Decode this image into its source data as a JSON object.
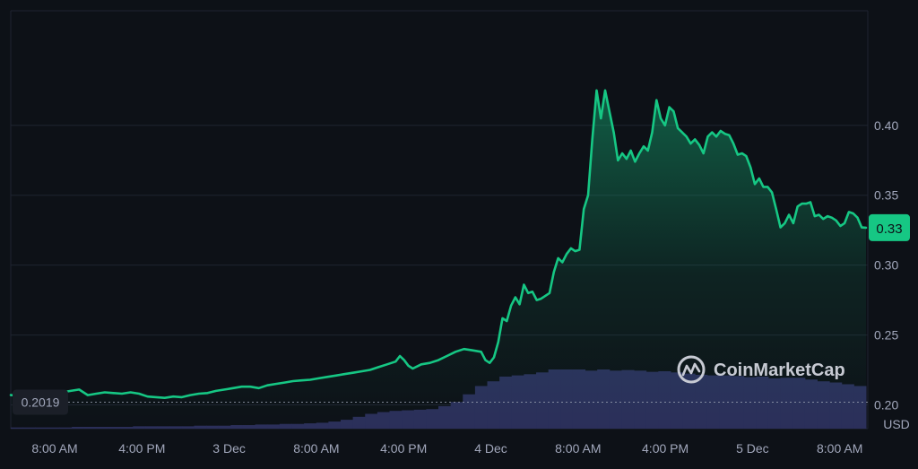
{
  "chart_data": {
    "type": "area",
    "currency_label": "USD",
    "x_ticks": [
      "8:00 AM",
      "4:00 PM",
      "3 Dec",
      "8:00 AM",
      "4:00 PM",
      "4 Dec",
      "8:00 AM",
      "4:00 PM",
      "5 Dec",
      "8:00 AM"
    ],
    "y_ticks": [
      "0.40",
      "0.35",
      "0.30",
      "0.25",
      "0.20"
    ],
    "ylim": [
      0.183,
      0.482
    ],
    "baseline": {
      "label": "0.2019",
      "value": 0.2019
    },
    "current_price": {
      "label": "0.33",
      "value": 0.3268
    },
    "colors": {
      "line": "#16c784",
      "badge": "#16c784",
      "volume": "#2b2f5a",
      "background": "#0d1117"
    },
    "series": [
      {
        "values": [
          [
            0,
            0.207
          ],
          [
            2,
            0.2066
          ],
          [
            4,
            0.207
          ],
          [
            6,
            0.2072
          ],
          [
            8,
            0.2076
          ],
          [
            10,
            0.208
          ],
          [
            12,
            0.209
          ],
          [
            14,
            0.21
          ],
          [
            16,
            0.211
          ],
          [
            17,
            0.209
          ],
          [
            18,
            0.207
          ],
          [
            20,
            0.208
          ],
          [
            22,
            0.209
          ],
          [
            24,
            0.2085
          ],
          [
            26,
            0.208
          ],
          [
            28,
            0.209
          ],
          [
            30,
            0.208
          ],
          [
            32,
            0.206
          ],
          [
            34,
            0.2055
          ],
          [
            36,
            0.205
          ],
          [
            38,
            0.206
          ],
          [
            40,
            0.2055
          ],
          [
            42,
            0.207
          ],
          [
            44,
            0.208
          ],
          [
            46,
            0.2085
          ],
          [
            48,
            0.21
          ],
          [
            50,
            0.211
          ],
          [
            52,
            0.212
          ],
          [
            54,
            0.213
          ],
          [
            56,
            0.213
          ],
          [
            58,
            0.212
          ],
          [
            60,
            0.214
          ],
          [
            62,
            0.215
          ],
          [
            64,
            0.216
          ],
          [
            66,
            0.217
          ],
          [
            68,
            0.2175
          ],
          [
            70,
            0.218
          ],
          [
            72,
            0.219
          ],
          [
            74,
            0.22
          ],
          [
            76,
            0.221
          ],
          [
            78,
            0.222
          ],
          [
            80,
            0.223
          ],
          [
            82,
            0.224
          ],
          [
            84,
            0.225
          ],
          [
            86,
            0.227
          ],
          [
            88,
            0.229
          ],
          [
            90,
            0.231
          ],
          [
            91,
            0.235
          ],
          [
            92,
            0.232
          ],
          [
            93,
            0.228
          ],
          [
            94,
            0.226
          ],
          [
            96,
            0.229
          ],
          [
            98,
            0.23
          ],
          [
            100,
            0.232
          ],
          [
            102,
            0.235
          ],
          [
            104,
            0.238
          ],
          [
            106,
            0.24
          ],
          [
            108,
            0.239
          ],
          [
            110,
            0.238
          ],
          [
            111,
            0.232
          ],
          [
            112,
            0.23
          ],
          [
            113,
            0.234
          ],
          [
            114,
            0.245
          ],
          [
            115,
            0.262
          ],
          [
            116,
            0.26
          ],
          [
            117,
            0.271
          ],
          [
            118,
            0.277
          ],
          [
            119,
            0.272
          ],
          [
            120,
            0.286
          ],
          [
            121,
            0.28
          ],
          [
            122,
            0.281
          ],
          [
            123,
            0.275
          ],
          [
            124,
            0.276
          ],
          [
            125,
            0.278
          ],
          [
            126,
            0.28
          ],
          [
            127,
            0.295
          ],
          [
            128,
            0.305
          ],
          [
            129,
            0.302
          ],
          [
            130,
            0.308
          ],
          [
            131,
            0.312
          ],
          [
            132,
            0.31
          ],
          [
            133,
            0.311
          ],
          [
            134,
            0.34
          ],
          [
            135,
            0.35
          ],
          [
            136,
            0.39
          ],
          [
            137,
            0.425
          ],
          [
            138,
            0.405
          ],
          [
            139,
            0.425
          ],
          [
            140,
            0.41
          ],
          [
            141,
            0.395
          ],
          [
            142,
            0.375
          ],
          [
            143,
            0.38
          ],
          [
            144,
            0.376
          ],
          [
            145,
            0.382
          ],
          [
            146,
            0.374
          ],
          [
            147,
            0.38
          ],
          [
            148,
            0.385
          ],
          [
            149,
            0.382
          ],
          [
            150,
            0.395
          ],
          [
            151,
            0.418
          ],
          [
            152,
            0.405
          ],
          [
            153,
            0.4
          ],
          [
            154,
            0.413
          ],
          [
            155,
            0.41
          ],
          [
            156,
            0.398
          ],
          [
            157,
            0.395
          ],
          [
            158,
            0.392
          ],
          [
            159,
            0.387
          ],
          [
            160,
            0.39
          ],
          [
            161,
            0.386
          ],
          [
            162,
            0.38
          ],
          [
            163,
            0.392
          ],
          [
            164,
            0.395
          ],
          [
            165,
            0.392
          ],
          [
            166,
            0.396
          ],
          [
            167,
            0.394
          ],
          [
            168,
            0.393
          ],
          [
            169,
            0.387
          ],
          [
            170,
            0.379
          ],
          [
            171,
            0.38
          ],
          [
            172,
            0.378
          ],
          [
            173,
            0.37
          ],
          [
            174,
            0.358
          ],
          [
            175,
            0.362
          ],
          [
            176,
            0.356
          ],
          [
            177,
            0.356
          ],
          [
            178,
            0.352
          ],
          [
            179,
            0.34
          ],
          [
            180,
            0.327
          ],
          [
            181,
            0.33
          ],
          [
            182,
            0.336
          ],
          [
            183,
            0.33
          ],
          [
            184,
            0.342
          ],
          [
            185,
            0.344
          ],
          [
            186,
            0.344
          ],
          [
            187,
            0.345
          ],
          [
            188,
            0.335
          ],
          [
            189,
            0.336
          ],
          [
            190,
            0.333
          ],
          [
            191,
            0.335
          ],
          [
            192,
            0.334
          ],
          [
            193,
            0.332
          ],
          [
            194,
            0.328
          ],
          [
            195,
            0.33
          ],
          [
            196,
            0.338
          ],
          [
            197,
            0.337
          ],
          [
            198,
            0.334
          ],
          [
            199,
            0.327
          ],
          [
            200,
            0.3268
          ]
        ]
      }
    ],
    "volume_values": [
      0.02,
      0.02,
      0.02,
      0.02,
      0.02,
      0.03,
      0.03,
      0.03,
      0.03,
      0.03,
      0.04,
      0.04,
      0.04,
      0.04,
      0.04,
      0.05,
      0.05,
      0.05,
      0.06,
      0.06,
      0.07,
      0.07,
      0.08,
      0.08,
      0.09,
      0.1,
      0.12,
      0.15,
      0.2,
      0.25,
      0.28,
      0.3,
      0.31,
      0.32,
      0.33,
      0.38,
      0.45,
      0.58,
      0.72,
      0.8,
      0.88,
      0.9,
      0.92,
      0.95,
      1.0,
      1.0,
      1.0,
      0.98,
      1.0,
      0.98,
      0.99,
      0.98,
      0.96,
      0.97,
      0.95,
      0.93,
      0.91,
      0.9,
      0.9,
      0.89,
      0.87,
      0.88,
      0.85,
      0.86,
      0.86,
      0.83,
      0.8,
      0.78,
      0.75,
      0.72
    ]
  },
  "watermark": {
    "label": "CoinMarketCap"
  }
}
